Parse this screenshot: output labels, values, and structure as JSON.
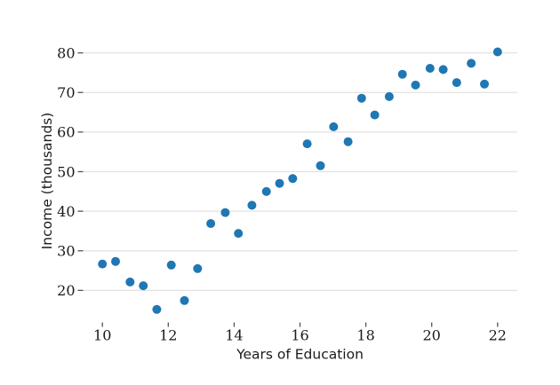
{
  "figure": {
    "background": "#ffffff"
  },
  "chart_data": {
    "type": "scatter",
    "title": "",
    "xlabel": "Years of Education",
    "ylabel": "Income (thousands)",
    "x": [
      10.0,
      10.4,
      10.84,
      11.24,
      11.65,
      12.09,
      12.49,
      12.89,
      13.29,
      13.73,
      14.13,
      14.54,
      14.98,
      15.38,
      15.78,
      16.22,
      16.62,
      17.02,
      17.46,
      17.87,
      18.27,
      18.71,
      19.11,
      19.51,
      19.95,
      20.35,
      20.76,
      21.2,
      21.6,
      22.0
    ],
    "y": [
      26.66,
      27.31,
      22.13,
      21.17,
      15.19,
      26.4,
      17.44,
      25.51,
      36.88,
      39.67,
      34.4,
      41.5,
      44.98,
      47.04,
      48.25,
      57.03,
      51.49,
      61.34,
      57.58,
      68.55,
      64.31,
      68.96,
      74.61,
      71.87,
      76.1,
      75.78,
      72.49,
      77.36,
      72.12,
      80.26
    ],
    "xticks": [
      10,
      12,
      14,
      16,
      18,
      20,
      22
    ],
    "yticks": [
      20,
      30,
      40,
      50,
      60,
      70,
      80
    ],
    "xlim": [
      9.4,
      22.6
    ],
    "ylim": [
      11.9,
      83.5
    ],
    "grid": "horizontal-only",
    "legend_position": "none",
    "marker": {
      "shape": "circle",
      "color": "#1f77b4",
      "radius_px": 5
    },
    "colors": {
      "grid": "#e2e2e2",
      "tick": "#555555",
      "text": "#1a1a1a",
      "background": "#ffffff"
    }
  }
}
